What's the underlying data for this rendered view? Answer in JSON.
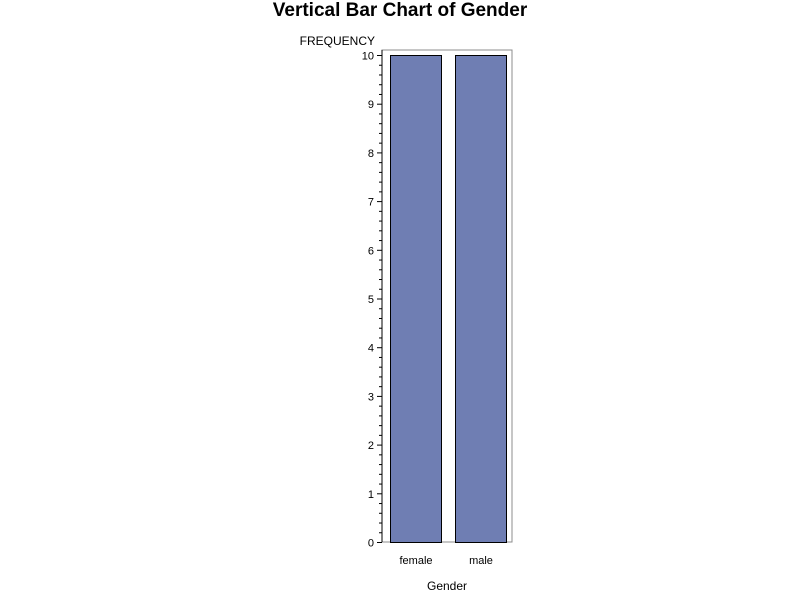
{
  "chart_data": {
    "type": "bar",
    "title": "Vertical Bar Chart of Gender",
    "xlabel": "Gender",
    "ylabel": "FREQUENCY",
    "categories": [
      "female",
      "male"
    ],
    "values": [
      10,
      10
    ],
    "ylim": [
      0,
      10
    ],
    "yticks": [
      "0",
      "1",
      "2",
      "3",
      "4",
      "5",
      "6",
      "7",
      "8",
      "9",
      "10"
    ],
    "minor_ticks_per_interval": 5,
    "grid": false,
    "legend": "none",
    "bar_color": "#6f7eb3",
    "bar_outline_color": "#000000",
    "frame_color": "#8c8c8c"
  }
}
